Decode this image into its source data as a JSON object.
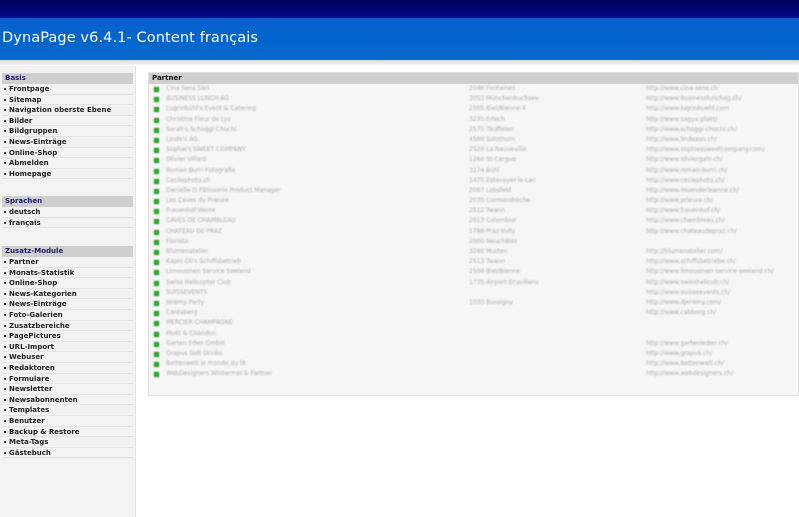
{
  "app": {
    "title": "DynaPage v6.4.1- Content français"
  },
  "sidebar": {
    "sections": [
      {
        "title": "Basis",
        "items": [
          "Frontpage",
          "Sitemap",
          "Navigation oberste Ebene",
          "Bilder",
          "Bildgruppen",
          "News-Einträge",
          "Online-Shop",
          "Abmelden",
          "Homepage"
        ]
      },
      {
        "title": "Sprachen",
        "items": [
          "deutsch",
          "français"
        ]
      },
      {
        "title": "Zusatz-Module",
        "items": [
          "Partner",
          "Monats-Statistik",
          "Online-Shop",
          "News-Kategorien",
          "News-Einträge",
          "Foto-Galerien",
          "Zusatzbereiche",
          "PagePictures",
          "URL-Import",
          "Webuser",
          "Redaktoren",
          "Formulare",
          "Newsletter",
          "Newsabonnenten",
          "Templates",
          "Benutzer",
          "Backup & Restore",
          "Meta-Tags",
          "Gästebuch"
        ]
      }
    ]
  },
  "main": {
    "title": "Partner",
    "icon": "green-square-bullet-icon",
    "rows": [
      [
        "Cina Sens Sàrl",
        "2046 Fontaines",
        "http://www.cina-sens.ch"
      ],
      [
        "BUSINESS LUNCH AG",
        "3053 Münchenbuchsee",
        "http://www.businesslunchag.ch/"
      ],
      [
        "Lugrinbühl's Event & Catering",
        "2505 Biel/Bienne 4",
        "http://www.lugrinbuehl.com"
      ],
      [
        "Christine Fleur de Lys",
        "3235 Erlach",
        "http://www.sagya.plakt/"
      ],
      [
        "Sarah's Schoggi Chuchi",
        "2575 Täuffelen",
        "http://www.schoggi-chuchi.ch/"
      ],
      [
        "Linde's AG",
        "4500 Solothurn",
        "http://www.lindeasn.ch/"
      ],
      [
        "Sophie's SWEET COMPANY",
        "2520 La Neuveville",
        "http://www.sophiessweetcompany.com/"
      ],
      [
        "Olivier Villard",
        "1264 St-Cergue",
        "http://www.oliviergalo.ch/"
      ],
      [
        "Roman Burri Fotografie",
        "3274 Bühl",
        "http://www.roman-burri.ch/"
      ],
      [
        "Cecilephoto.ch",
        "1470 Estavayer-le-Lac",
        "http://www.ceciephoto.ch/"
      ],
      [
        "Danielle D Pâtisserie Product Manager",
        "2087 Lobsfeld",
        "http://www.muenderleanne.ch/"
      ],
      [
        "Les Caves du Prieuré",
        "2035 Cormondrèche",
        "http://www.prieure.ch/"
      ],
      [
        "Frauenhof Werre",
        "2512 Twann",
        "http://www.frauenhof.ch/"
      ],
      [
        "CAVES DE CHAMBLEAU",
        "2013 Colombier",
        "http://www.chambleau.ch/"
      ],
      [
        "CHATEAU DE PRAZ",
        "1788 Praz-Vully",
        "http://www.chateaudepraz.ch/"
      ],
      [
        "Florista",
        "2000 Neuchâtel",
        ""
      ],
      [
        "Blumenatelier",
        "3280 Murten",
        "http://blumenatelier.com/"
      ],
      [
        "Kapin Oli's Schiffsbetrieb",
        "2513 Twann",
        "http://www.schiffsbetriebe.ch/"
      ],
      [
        "Limousinen Service Seeland",
        "2504 Biel/Bienne",
        "http://www.limousinen-service-seeland.ch/"
      ],
      [
        "Swiss Helicopter Club",
        "1735 Airport Ecuvillens",
        "http://www.swisshelicub.ch/"
      ],
      [
        "SUISSEVENTS",
        "",
        "http://www.suisseevents.ch/"
      ],
      [
        "Jérémy Party",
        "1030 Bussigny",
        "http://www.djeremy.com/"
      ],
      [
        "Cantaberg",
        "",
        "http://www.cabberg.ch/"
      ],
      [
        "MERCIER CHAMPAGNE",
        "",
        ""
      ],
      [
        "Moët & Chandon",
        "",
        ""
      ],
      [
        "Garten Eden GmbH",
        "",
        "http://www.gartenleden.ch/"
      ],
      [
        "Grapus Soft Drinks",
        "",
        "http://www.grapus.ch/"
      ],
      [
        "Bettenwelt le monde du lit",
        "",
        "http://www.bettenwelt.ch/"
      ],
      [
        "WebDesigners Wintermei & Partner",
        "",
        "http://www.webdesigners.ch/"
      ]
    ]
  }
}
